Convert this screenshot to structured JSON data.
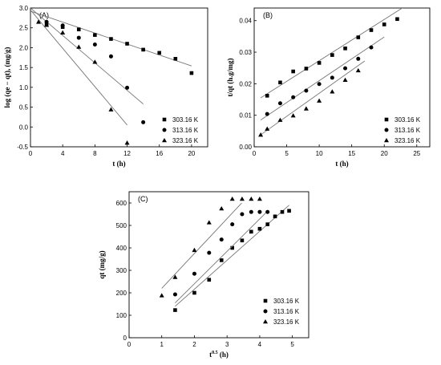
{
  "chart_data": [
    {
      "type": "scatter",
      "panel_label": "(A)",
      "xlabel": "t (h)",
      "ylabel": "log (qe − qt), (mg/g)",
      "xlim": [
        0,
        22
      ],
      "ylim": [
        -0.5,
        3.0
      ],
      "xticks": [
        "0",
        "4",
        "8",
        "12",
        "16",
        "20"
      ],
      "yticks": [
        "-0.5",
        "0.0",
        "0.5",
        "1.0",
        "1.5",
        "2.0",
        "2.5",
        "3.0"
      ],
      "legend_position": "bottom-right",
      "series": [
        {
          "name": "303.16 K",
          "marker": "square",
          "x": [
            2,
            4,
            6,
            8,
            10,
            12,
            14,
            16,
            18,
            20
          ],
          "y": [
            2.58,
            2.52,
            2.46,
            2.32,
            2.22,
            2.1,
            1.95,
            1.87,
            1.72,
            1.36
          ],
          "fit": [
            [
              0,
              2.92
            ],
            [
              20,
              1.54
            ]
          ]
        },
        {
          "name": "313.16 K",
          "marker": "circle",
          "x": [
            2,
            4,
            6,
            8,
            10,
            12,
            14
          ],
          "y": [
            2.65,
            2.56,
            2.25,
            2.08,
            1.78,
            0.99,
            0.12
          ],
          "fit": [
            [
              0,
              3.0
            ],
            [
              14,
              0.58
            ]
          ]
        },
        {
          "name": "323.16 K",
          "marker": "triangle",
          "x": [
            1,
            2,
            4,
            6,
            8,
            10,
            12
          ],
          "y": [
            2.65,
            2.57,
            2.38,
            2.02,
            1.64,
            0.44,
            -0.4
          ],
          "fit": [
            [
              0,
              2.95
            ],
            [
              12,
              0.05
            ]
          ]
        }
      ]
    },
    {
      "type": "scatter",
      "panel_label": "(B)",
      "xlabel": "t (h)",
      "ylabel": "t/qt (h.g/mg)",
      "xlim": [
        0,
        27
      ],
      "ylim": [
        0,
        0.044
      ],
      "xticks": [
        "0",
        "5",
        "10",
        "15",
        "20",
        "25"
      ],
      "yticks": [
        "0.00",
        "0.01",
        "0.02",
        "0.03",
        "0.04"
      ],
      "legend_position": "bottom-right",
      "series": [
        {
          "name": "303.16 K",
          "marker": "square",
          "x": [
            2,
            4,
            6,
            8,
            10,
            12,
            14,
            16,
            18,
            20,
            22
          ],
          "y": [
            0.0162,
            0.0204,
            0.0239,
            0.0248,
            0.0266,
            0.0291,
            0.0312,
            0.0347,
            0.037,
            0.0388,
            0.0405
          ],
          "fit": [
            [
              1,
              0.0155
            ],
            [
              23,
              0.0443
            ]
          ]
        },
        {
          "name": "313.16 K",
          "marker": "circle",
          "x": [
            2,
            4,
            6,
            8,
            10,
            12,
            14,
            16,
            18
          ],
          "y": [
            0.0104,
            0.0138,
            0.0157,
            0.0178,
            0.0199,
            0.0219,
            0.0249,
            0.0279,
            0.0315
          ],
          "fit": [
            [
              1,
              0.0085
            ],
            [
              20,
              0.0348
            ]
          ]
        },
        {
          "name": "323.16 K",
          "marker": "triangle",
          "x": [
            1,
            2,
            4,
            6,
            8,
            10,
            12,
            14,
            16
          ],
          "y": [
            0.0038,
            0.0057,
            0.0085,
            0.0099,
            0.0121,
            0.0146,
            0.0175,
            0.0212,
            0.0242
          ],
          "fit": [
            [
              1,
              0.0038
            ],
            [
              17,
              0.0272
            ]
          ]
        }
      ]
    },
    {
      "type": "scatter",
      "panel_label": "(C)",
      "xlabel": "t^0.5 (h)",
      "ylabel": "qt (mg/g)",
      "xlim": [
        0,
        5.5
      ],
      "ylim": [
        0,
        650
      ],
      "xticks": [
        "0",
        "1",
        "2",
        "3",
        "4",
        "5"
      ],
      "yticks": [
        "0",
        "100",
        "200",
        "300",
        "400",
        "500",
        "600"
      ],
      "legend_position": "bottom-right",
      "series": [
        {
          "name": "303.16 K",
          "marker": "square",
          "x": [
            1.41,
            2.0,
            2.45,
            2.83,
            3.16,
            3.46,
            3.74,
            4.0,
            4.24,
            4.47,
            4.69,
            4.9
          ],
          "y": [
            123,
            200,
            258,
            345,
            400,
            433,
            472,
            485,
            505,
            540,
            560,
            565
          ],
          "fit": [
            [
              1.41,
              140
            ],
            [
              4.9,
              590
            ]
          ]
        },
        {
          "name": "313.16 K",
          "marker": "circle",
          "x": [
            1.41,
            2.0,
            2.45,
            2.83,
            3.16,
            3.46,
            3.74,
            4.0,
            4.24
          ],
          "y": [
            193,
            285,
            378,
            437,
            505,
            550,
            560,
            560,
            560
          ],
          "fit": [
            [
              1.41,
              155
            ],
            [
              4.25,
              565
            ]
          ]
        },
        {
          "name": "323.16 K",
          "marker": "triangle",
          "x": [
            1.0,
            1.41,
            2.0,
            2.45,
            2.83,
            3.16,
            3.46,
            3.74,
            4.0
          ],
          "y": [
            188,
            270,
            390,
            513,
            575,
            618,
            618,
            618,
            618
          ],
          "fit": [
            [
              1.0,
              220
            ],
            [
              3.45,
              600
            ]
          ]
        }
      ]
    }
  ]
}
